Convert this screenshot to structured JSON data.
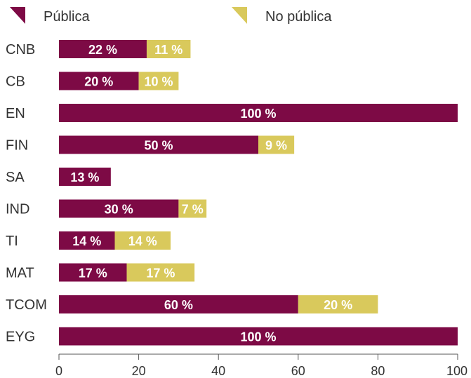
{
  "chart_data": {
    "type": "bar",
    "orientation": "horizontal",
    "stacked": true,
    "categories": [
      "CNB",
      "CB",
      "EN",
      "FIN",
      "SA",
      "IND",
      "TI",
      "MAT",
      "TCOM",
      "EYG"
    ],
    "series": [
      {
        "name": "Pública",
        "color": "#7d0a45",
        "values": [
          22,
          20,
          100,
          50,
          13,
          30,
          14,
          17,
          60,
          100
        ],
        "labels": [
          "22 %",
          "20 %",
          "100 %",
          "50 %",
          "13 %",
          "30 %",
          "14 %",
          "17 %",
          "60 %",
          "100 %"
        ]
      },
      {
        "name": "No pública",
        "color": "#d9c95c",
        "values": [
          11,
          10,
          0,
          9,
          0,
          7,
          14,
          17,
          20,
          0
        ],
        "labels": [
          "11 %",
          "10 %",
          "",
          "9 %",
          "",
          "7 %",
          "14 %",
          "17 %",
          "20 %",
          ""
        ]
      }
    ],
    "xlim": [
      0,
      100
    ],
    "xticks": [
      0,
      20,
      40,
      60,
      80,
      100
    ],
    "xtick_labels": [
      "0",
      "20",
      "40",
      "60",
      "80",
      "100"
    ],
    "legend_position": "top",
    "grid": false
  }
}
